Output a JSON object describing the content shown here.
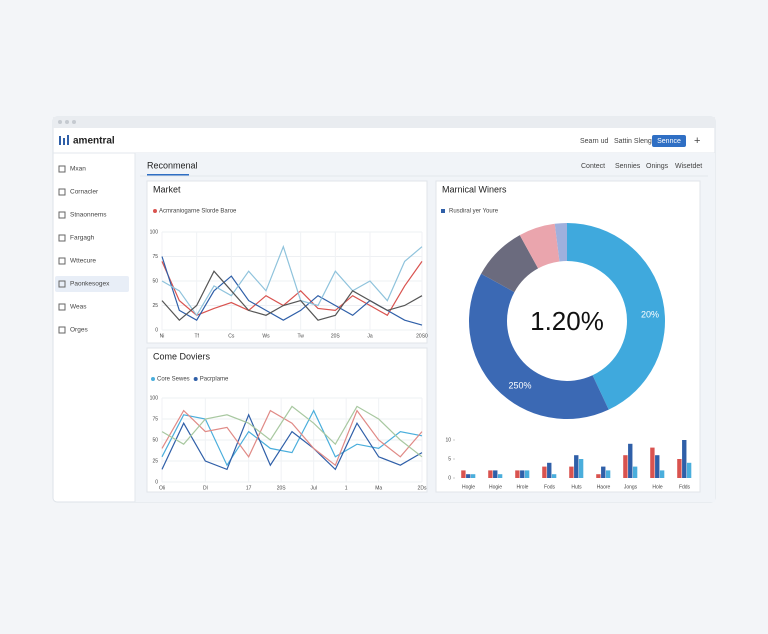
{
  "header": {
    "logo": "amentral",
    "actions": [
      "Searn ud",
      "Sattin Sleng",
      "Sennce",
      "+"
    ]
  },
  "sidebar": {
    "items": [
      "Mxan",
      "Cornacler",
      "Stnaonnems",
      "Fargagh",
      "Wttecure",
      "Paonkesogex",
      "Weas",
      "Orges"
    ],
    "active": 5
  },
  "tabs": {
    "main": "Reconmenal",
    "right": [
      "Contect",
      "Sennies",
      "Onings",
      "Wisetdet"
    ]
  },
  "chart_data": [
    {
      "type": "line",
      "title": "Market",
      "xlim": [
        0,
        15
      ],
      "ylim": [
        0,
        100
      ],
      "yticks": [
        0,
        25,
        50,
        75,
        100
      ],
      "xticks": [
        {
          "value": 0,
          "label": "Ni"
        },
        {
          "value": 2,
          "label": "Tf"
        },
        {
          "value": 4,
          "label": "Cs"
        },
        {
          "value": 6,
          "label": "Ws"
        },
        {
          "value": 8,
          "label": "Tw"
        },
        {
          "value": 10,
          "label": "20S"
        },
        {
          "value": 12,
          "label": "Ja"
        },
        {
          "value": 15,
          "label": "20S0"
        }
      ],
      "x": [
        0,
        1,
        2,
        3,
        4,
        5,
        6,
        7,
        8,
        9,
        10,
        11,
        12,
        13,
        14,
        15
      ],
      "series": [
        {
          "name": "Acmraniogarne Slorde Baroe",
          "color": "#d9534f",
          "values": [
            70,
            30,
            15,
            22,
            28,
            20,
            35,
            25,
            40,
            22,
            20,
            35,
            25,
            15,
            45,
            70
          ]
        },
        {
          "color": "#2f5fa8",
          "values": [
            75,
            20,
            10,
            40,
            55,
            30,
            20,
            10,
            20,
            35,
            25,
            15,
            30,
            20,
            10,
            5
          ]
        },
        {
          "color": "#8fc3dc",
          "values": [
            50,
            40,
            15,
            45,
            35,
            60,
            40,
            85,
            30,
            25,
            60,
            40,
            50,
            30,
            70,
            85
          ]
        },
        {
          "color": "#555555",
          "values": [
            30,
            10,
            25,
            60,
            40,
            20,
            15,
            25,
            30,
            10,
            15,
            40,
            30,
            20,
            25,
            35
          ]
        }
      ]
    },
    {
      "type": "line",
      "title": "Come Doviers",
      "xlim": [
        0,
        12
      ],
      "ylim": [
        0,
        100
      ],
      "yticks": [
        0,
        25,
        50,
        75,
        100
      ],
      "xticks": [
        {
          "value": 0,
          "label": "Oli"
        },
        {
          "value": 2,
          "label": "Dl"
        },
        {
          "value": 4,
          "label": "17"
        },
        {
          "value": 5.5,
          "label": "20S"
        },
        {
          "value": 7,
          "label": "Jul"
        },
        {
          "value": 8.5,
          "label": "1"
        },
        {
          "value": 10,
          "label": "Ma"
        },
        {
          "value": 12,
          "label": "2Ds"
        }
      ],
      "x": [
        0,
        1,
        2,
        3,
        4,
        5,
        6,
        7,
        8,
        9,
        10,
        11,
        12
      ],
      "series": [
        {
          "name": "Core Sewes",
          "color": "#4aaedc",
          "values": [
            30,
            80,
            75,
            20,
            60,
            40,
            35,
            85,
            30,
            45,
            40,
            60,
            55
          ]
        },
        {
          "name": "Pacrplame",
          "color": "#2f5fa8",
          "values": [
            15,
            70,
            25,
            15,
            80,
            20,
            60,
            40,
            15,
            70,
            30,
            20,
            35
          ]
        },
        {
          "color": "#e08a86",
          "values": [
            40,
            85,
            60,
            65,
            30,
            85,
            70,
            40,
            20,
            85,
            50,
            30,
            60
          ]
        },
        {
          "color": "#a8c8a0",
          "values": [
            60,
            45,
            75,
            80,
            70,
            50,
            90,
            70,
            45,
            90,
            75,
            50,
            30
          ]
        }
      ]
    },
    {
      "type": "pie",
      "title": "Marnical Winers",
      "legend": "Rusdiral yer Youre",
      "center_label": "1.20%",
      "annotations": [
        "20%",
        "250%"
      ],
      "values": [
        43,
        40,
        9,
        6,
        2
      ],
      "colors": [
        "#3fa9dd",
        "#3b69b4",
        "#6b6b7e",
        "#eaa5ad",
        "#9fb0dd"
      ]
    },
    {
      "type": "bar",
      "categories": [
        "Hogle",
        "Hogie",
        "Hrole",
        "Fods",
        "Huts",
        "Haore",
        "Jongs",
        "Hole",
        "Fdds"
      ],
      "ylim": [
        0,
        10
      ],
      "yticks": [
        0,
        5,
        10
      ],
      "series": [
        {
          "color": "#d9534f",
          "values": [
            2,
            2,
            2,
            3,
            3,
            1,
            6,
            8,
            5
          ]
        },
        {
          "color": "#2f5fa8",
          "values": [
            1,
            2,
            2,
            4,
            6,
            3,
            9,
            6,
            10
          ]
        },
        {
          "color": "#4aaedc",
          "values": [
            1,
            1,
            2,
            1,
            5,
            2,
            3,
            2,
            4
          ]
        }
      ]
    }
  ]
}
